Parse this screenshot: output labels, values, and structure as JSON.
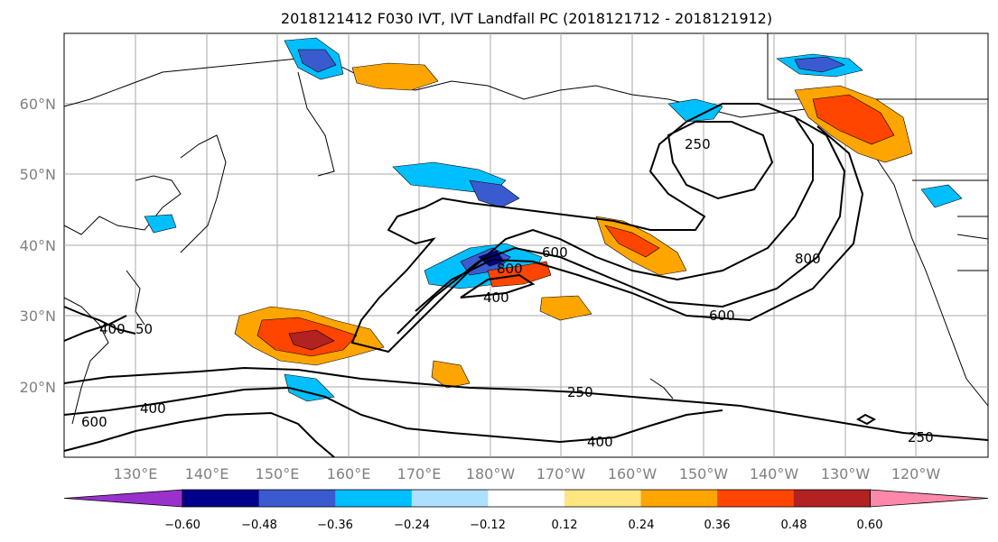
{
  "title": "2018121412 F030 IVT, IVT Landfall PC (2018121712 - 2018121912)",
  "map": {
    "lat_labels": [
      "60°N",
      "50°N",
      "40°N",
      "30°N",
      "20°N"
    ],
    "lon_labels": [
      "130°E",
      "140°E",
      "150°E",
      "160°E",
      "170°E",
      "180°W",
      "170°W",
      "160°W",
      "150°W",
      "140°W",
      "130°W",
      "120°W"
    ],
    "ivt_contour_labels": [
      "250",
      "250",
      "250",
      "400",
      "400",
      "400",
      "400",
      "600",
      "600",
      "600",
      "800",
      "800",
      "50"
    ],
    "colors": {
      "contour": "#000000",
      "gridline": "#aaaaaa",
      "coast": "#000000"
    }
  },
  "colorbar": {
    "ticks": [
      "−0.60",
      "−0.48",
      "−0.36",
      "−0.24",
      "−0.12",
      "0.12",
      "0.24",
      "0.36",
      "0.48",
      "0.60"
    ],
    "colors": [
      "#9932CC",
      "#00008B",
      "#3A5BD0",
      "#00BFFF",
      "#ADDFFF",
      "#FFFFFF",
      "#FFE680",
      "#FFA500",
      "#FF4500",
      "#B22222",
      "#FF88AA"
    ]
  }
}
